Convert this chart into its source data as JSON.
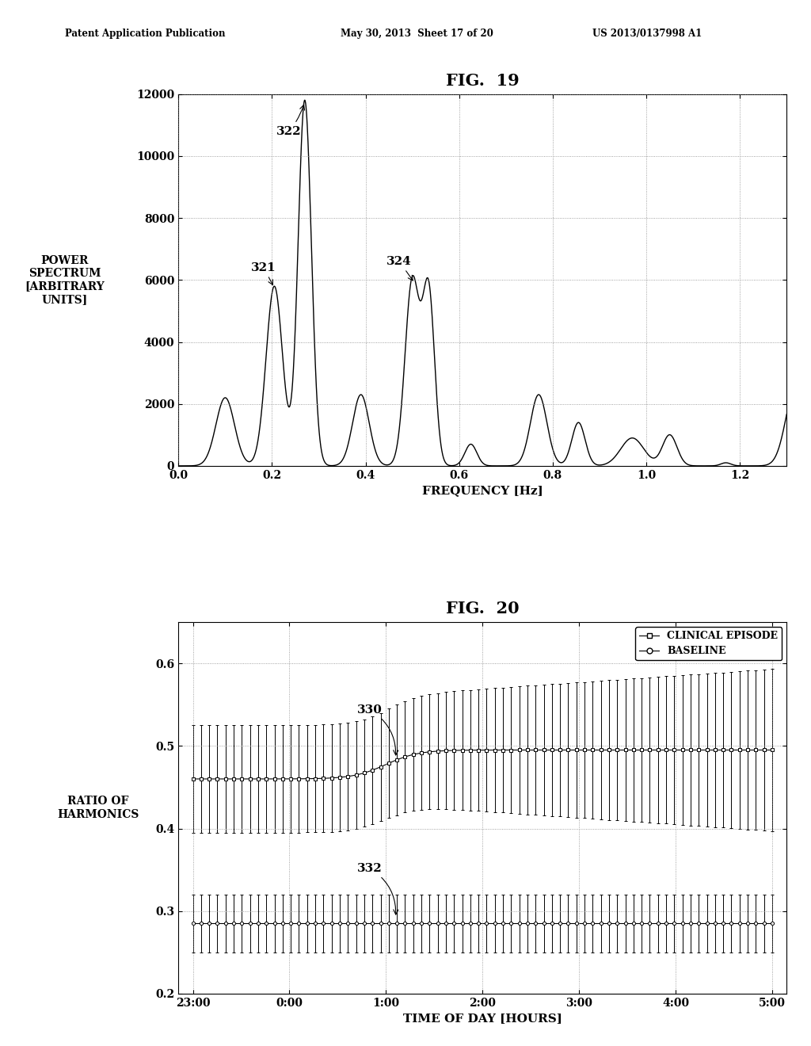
{
  "fig19_title": "FIG.  19",
  "fig20_title": "FIG.  20",
  "header_line1": "Patent Application Publication",
  "header_line2": "May 30, 2013  Sheet 17 of 20",
  "header_line3": "US 2013/0137998 A1",
  "fig19": {
    "ylabel_lines": [
      "POWER",
      "SPECTRUM",
      "[ARBITRARY",
      "UNITS]"
    ],
    "xlabel": "FREQUENCY [Hz]",
    "xlim": [
      0,
      1.3
    ],
    "ylim": [
      0,
      12000
    ],
    "yticks": [
      0,
      2000,
      4000,
      6000,
      8000,
      10000,
      12000
    ],
    "xticks": [
      0,
      0.2,
      0.4,
      0.6,
      0.8,
      1.0,
      1.2
    ]
  },
  "fig20": {
    "ylabel": "RATIO OF\nHARMONICS",
    "xlabel": "TIME OF DAY [HOURS]",
    "ylim": [
      0.2,
      0.65
    ],
    "yticks": [
      0.2,
      0.3,
      0.4,
      0.5,
      0.6
    ],
    "xtick_labels": [
      "23:00",
      "0:00",
      "1:00",
      "2:00",
      "3:00",
      "4:00",
      "5:00"
    ],
    "legend": [
      "CLINICAL EPISODE",
      "BASELINE"
    ]
  },
  "bg_color": "#ffffff",
  "line_color": "#000000"
}
